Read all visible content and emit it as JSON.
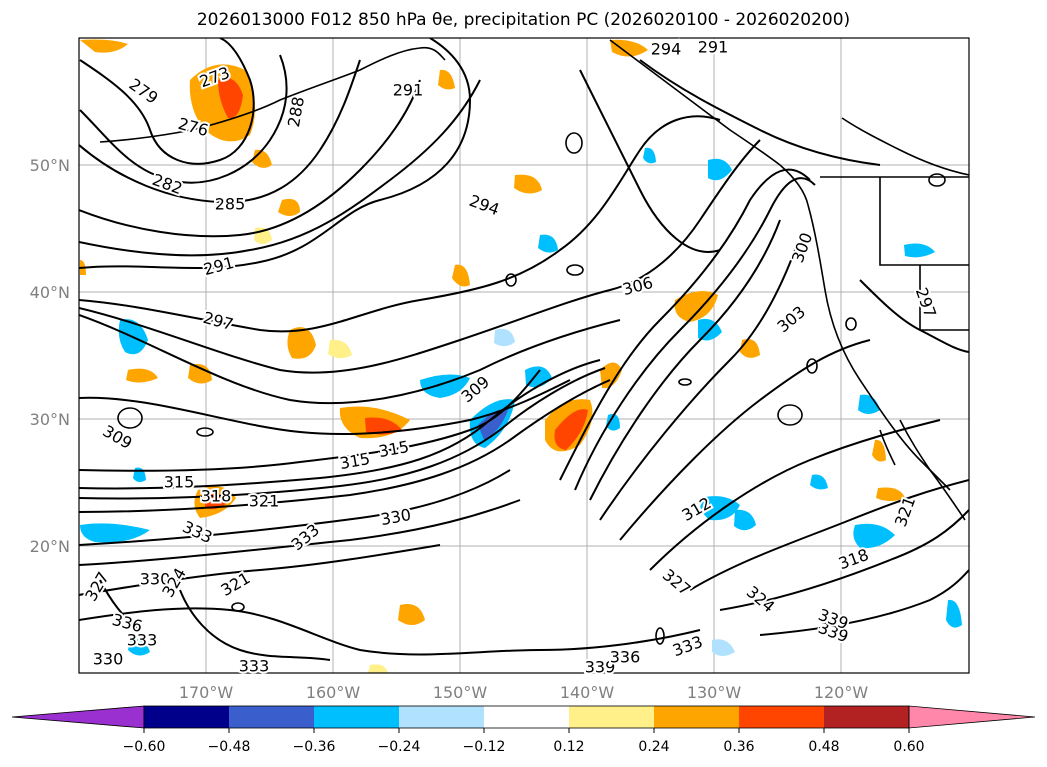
{
  "title": "2026013000 F012 850 hPa θe, precipitation PC (2026020100 - 2026020200)",
  "map": {
    "lat_labels": [
      "50°N",
      "40°N",
      "30°N",
      "20°N"
    ],
    "lon_labels": [
      "170°W",
      "160°W",
      "150°W",
      "140°W",
      "130°W",
      "120°W"
    ],
    "label_color": "#808080"
  },
  "contour_labels": [
    {
      "text": "279"
    },
    {
      "text": "273"
    },
    {
      "text": "276"
    },
    {
      "text": "282"
    },
    {
      "text": "285"
    },
    {
      "text": "288"
    },
    {
      "text": "291"
    },
    {
      "text": "291"
    },
    {
      "text": "294"
    },
    {
      "text": "294"
    },
    {
      "text": "291"
    },
    {
      "text": "297"
    },
    {
      "text": "297"
    },
    {
      "text": "300"
    },
    {
      "text": "306"
    },
    {
      "text": "303"
    },
    {
      "text": "309"
    },
    {
      "text": "309"
    },
    {
      "text": "315"
    },
    {
      "text": "315"
    },
    {
      "text": "315"
    },
    {
      "text": "318"
    },
    {
      "text": "321"
    },
    {
      "text": "333"
    },
    {
      "text": "330"
    },
    {
      "text": "333"
    },
    {
      "text": "327"
    },
    {
      "text": "330"
    },
    {
      "text": "324"
    },
    {
      "text": "321"
    },
    {
      "text": "336"
    },
    {
      "text": "333"
    },
    {
      "text": "330"
    },
    {
      "text": "333"
    },
    {
      "text": "339"
    },
    {
      "text": "336"
    },
    {
      "text": "333"
    },
    {
      "text": "327"
    },
    {
      "text": "324"
    },
    {
      "text": "339"
    },
    {
      "text": "318"
    },
    {
      "text": "321"
    },
    {
      "text": "312"
    },
    {
      "text": "339"
    }
  ],
  "colorbar": {
    "tick_labels": [
      "−0.60",
      "−0.48",
      "−0.36",
      "−0.24",
      "−0.12",
      "0.12",
      "0.24",
      "0.36",
      "0.48",
      "0.60"
    ],
    "colors": [
      "#9b30d0",
      "#00008b",
      "#3a5fcd",
      "#00bfff",
      "#b0e2ff",
      "#ffffff",
      "#fff08a",
      "#ffa500",
      "#ff4500",
      "#b22222",
      "#ff88aa"
    ]
  }
}
